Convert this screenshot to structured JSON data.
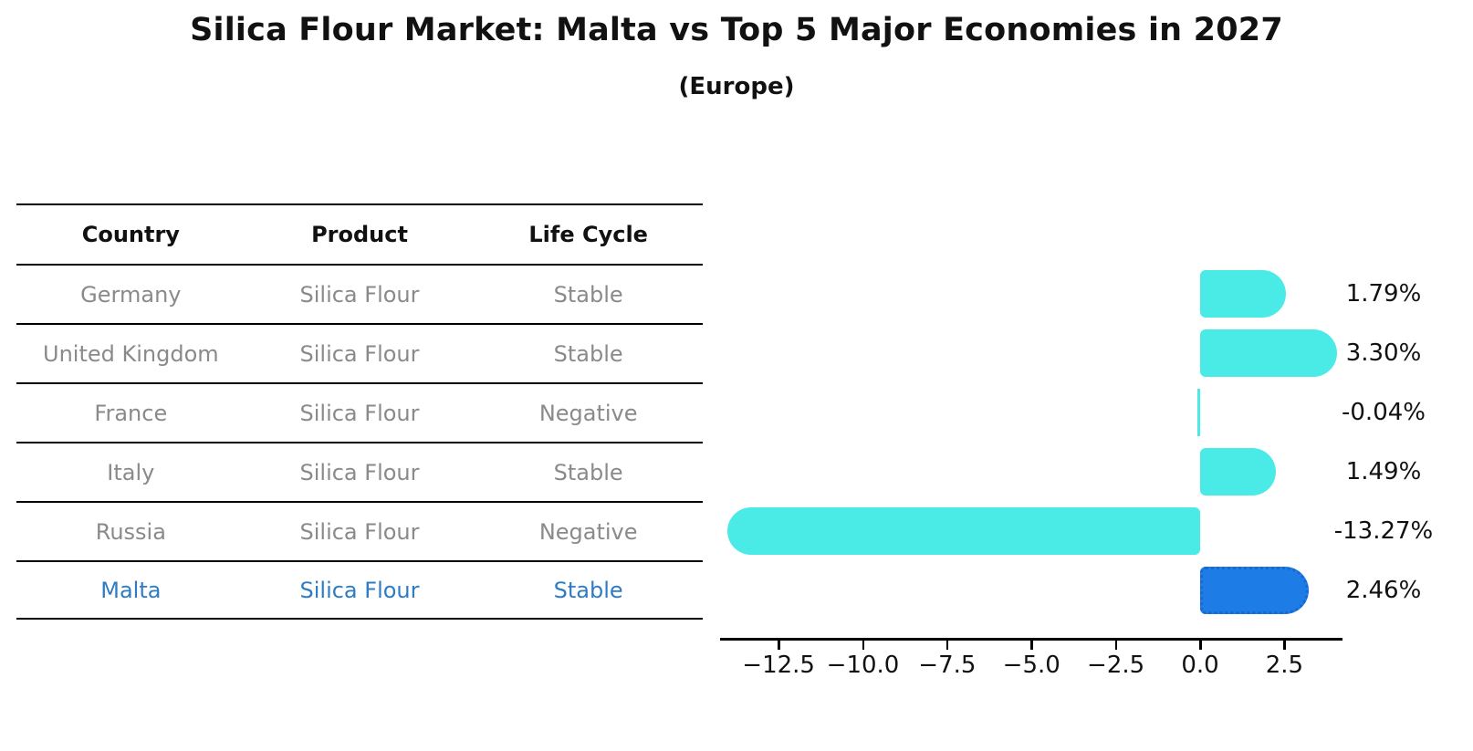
{
  "title": "Silica Flour Market: Malta vs Top 5 Major Economies in 2027",
  "subtitle": "(Europe)",
  "table": {
    "headers": [
      "Country",
      "Product",
      "Life Cycle"
    ],
    "rows": [
      {
        "country": "Germany",
        "product": "Silica Flour",
        "life_cycle": "Stable",
        "highlight": false
      },
      {
        "country": "United Kingdom",
        "product": "Silica Flour",
        "life_cycle": "Stable",
        "highlight": false
      },
      {
        "country": "France",
        "product": "Silica Flour",
        "life_cycle": "Negative",
        "highlight": false
      },
      {
        "country": "Italy",
        "product": "Silica Flour",
        "life_cycle": "Stable",
        "highlight": false
      },
      {
        "country": "Russia",
        "product": "Silica Flour",
        "life_cycle": "Negative",
        "highlight": false
      },
      {
        "country": "Malta",
        "product": "Silica Flour",
        "life_cycle": "Stable",
        "highlight": true
      }
    ]
  },
  "chart_data": {
    "type": "bar",
    "orientation": "horizontal",
    "title": "Silica Flour Market: Malta vs Top 5 Major Economies in 2027",
    "subtitle": "(Europe)",
    "categories": [
      "Germany",
      "United Kingdom",
      "France",
      "Italy",
      "Russia",
      "Malta"
    ],
    "values": [
      1.79,
      3.3,
      -0.04,
      1.49,
      -13.27,
      2.46
    ],
    "value_labels": [
      "1.79%",
      "3.30%",
      "-0.04%",
      "1.49%",
      "-13.27%",
      "2.46%"
    ],
    "x_ticks": [
      "−12.5",
      "−10.0",
      "−7.5",
      "−5.0",
      "−2.5",
      "0.0",
      "2.5"
    ],
    "x_tick_values": [
      -12.5,
      -10.0,
      -7.5,
      -5.0,
      -2.5,
      0.0,
      2.5
    ],
    "xlim": [
      -14.2,
      4.2
    ],
    "grid": false,
    "legend": false,
    "highlight_index": 5,
    "unit": "%",
    "colors": {
      "bar": "#4aeae6",
      "highlight_bar": "#1e7ce6",
      "highlight_border": "#1668d2",
      "axis": "#000000",
      "label_text": "#111111",
      "row_text": "#8a8a8a",
      "highlight_row_text": "#2e7cc3"
    }
  }
}
